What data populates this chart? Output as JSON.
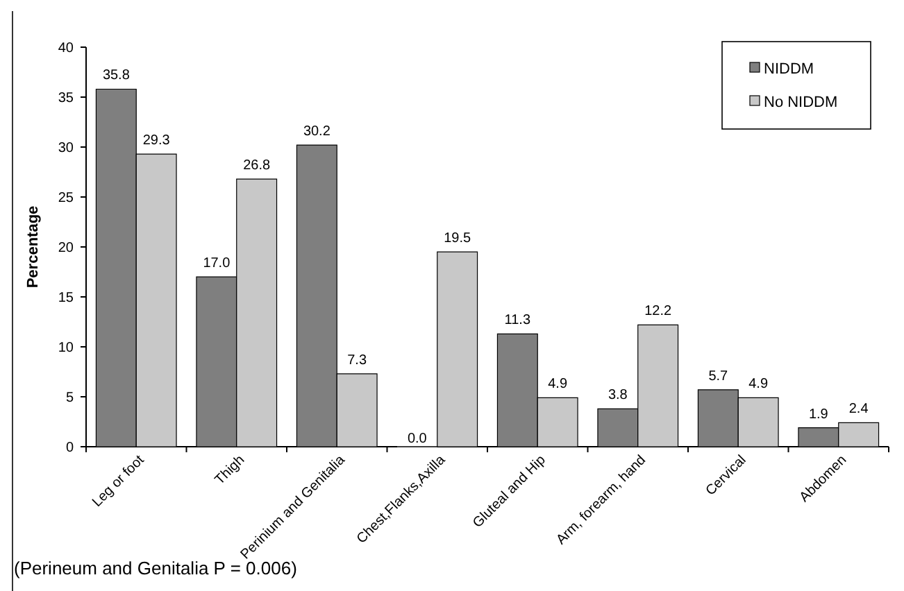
{
  "chart_data": {
    "type": "bar",
    "ylabel": "Percentage",
    "categories": [
      "Leg or foot",
      "Thigh",
      "Perinium and Genitalia",
      "Chest,Flanks,Axilla",
      "Gluteal and Hip",
      "Arm, forearm, hand",
      "Cervical",
      "Abdomen"
    ],
    "series": [
      {
        "name": "NIDDM",
        "color": "#7f7f7f",
        "values": [
          35.8,
          17.0,
          30.2,
          0.0,
          11.3,
          3.8,
          5.7,
          1.9
        ],
        "value_labels": [
          "35.8",
          "17.0",
          "30.2",
          "0.0",
          "11.3",
          "3.8",
          "5.7",
          "1.9"
        ]
      },
      {
        "name": "No NIDDM",
        "color": "#c8c8c8",
        "values": [
          29.3,
          26.8,
          7.3,
          19.5,
          4.9,
          12.2,
          4.9,
          2.4
        ],
        "value_labels": [
          "29.3",
          "26.8",
          "7.3",
          "19.5",
          "4.9",
          "12.2",
          "4.9",
          "2.4"
        ]
      }
    ],
    "ylim": [
      0,
      40
    ],
    "yticks": [
      0,
      5,
      10,
      15,
      20,
      25,
      30,
      35,
      40
    ],
    "legend": "top right",
    "annotations": [
      "(Perineum and Genitalia P = 0.006)"
    ]
  }
}
